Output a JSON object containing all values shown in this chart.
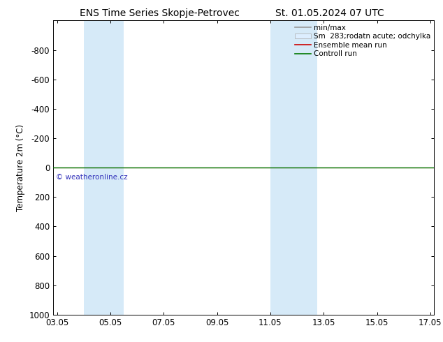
{
  "title": "ENS Time Series Skopje-Petrovec",
  "title2": "St. 01.05.2024 07 UTC",
  "ylabel": "Temperature 2m (°C)",
  "ylim_top": -1000,
  "ylim_bottom": 1000,
  "yticks": [
    -800,
    -600,
    -400,
    -200,
    0,
    200,
    400,
    600,
    800,
    1000
  ],
  "xtick_labels": [
    "03.05",
    "05.05",
    "07.05",
    "09.05",
    "11.05",
    "13.05",
    "15.05",
    "17.05"
  ],
  "xtick_positions": [
    3,
    5,
    7,
    9,
    11,
    13,
    15,
    17
  ],
  "xlim": [
    2.857,
    17.143
  ],
  "highlight_bands": [
    {
      "xmin": 4.0,
      "xmax": 5.5,
      "color": "#d6eaf8"
    },
    {
      "xmin": 11.0,
      "xmax": 12.75,
      "color": "#d6eaf8"
    }
  ],
  "control_run_y": 0,
  "ensemble_mean_y": 0,
  "ensemble_mean_color": "#cc0000",
  "control_run_color": "#007700",
  "min_max_color": "#999999",
  "shading_color": "#dddddd",
  "watermark": "© weatheronline.cz",
  "watermark_color": "#3333bb",
  "background_color": "#ffffff",
  "legend_labels": [
    "min/max",
    "Sm  283;rodatn acute; odchylka",
    "Ensemble mean run",
    "Controll run"
  ],
  "title_fontsize": 10,
  "axis_fontsize": 8.5,
  "legend_fontsize": 7.5
}
